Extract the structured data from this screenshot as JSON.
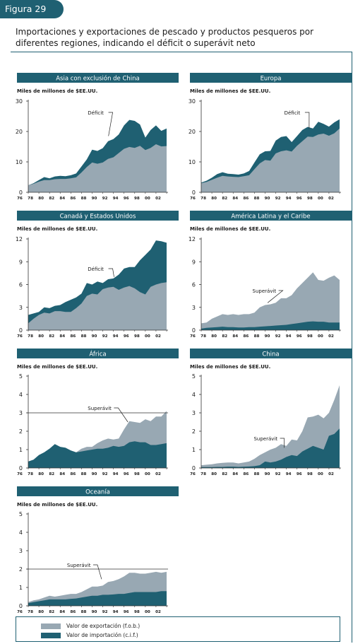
{
  "figure_label": "Figura 29",
  "figure_title": "Importaciones y exportaciones de pescado y productos pesqueros por diferentes regiones, indicando el déficit o superávit neto",
  "legend": {
    "export_label": "Valor de exportación (f.o.b.)",
    "import_label": "Valor de importación (c.i.f.)"
  },
  "colors": {
    "export": "#98a8b3",
    "import": "#1f6072",
    "header": "#1f6072",
    "axis": "#333333"
  },
  "chart_data": [
    {
      "type": "area",
      "title": "Asia con exclusión de China",
      "ylabel": "Miles de millones de $EE.UU.",
      "annotation": "Déficit",
      "categories": [
        "76",
        "78",
        "80",
        "82",
        "84",
        "86",
        "88",
        "90",
        "92",
        "94",
        "96",
        "98",
        "00",
        "02"
      ],
      "x": [
        76,
        77,
        78,
        79,
        80,
        81,
        82,
        83,
        84,
        85,
        86,
        87,
        88,
        89,
        90,
        91,
        92,
        93,
        94,
        95,
        96,
        97,
        98,
        99,
        100,
        101,
        102
      ],
      "ylim": [
        0,
        30
      ],
      "yticks": [
        0,
        10,
        20,
        30
      ],
      "series": [
        {
          "name": "Valor de importación (c.i.f.)",
          "values": [
            2.3,
            3.0,
            4.0,
            5.0,
            4.6,
            5.2,
            5.4,
            5.3,
            5.6,
            6.2,
            8.5,
            10.8,
            14.0,
            13.6,
            14.5,
            16.8,
            17.5,
            19.0,
            22.0,
            23.8,
            23.5,
            22.3,
            18.0,
            20.5,
            22.0,
            20.2,
            21.0
          ]
        },
        {
          "name": "Valor de exportación (f.o.b.)",
          "values": [
            2.3,
            2.8,
            3.5,
            4.0,
            4.0,
            4.3,
            4.4,
            4.4,
            4.6,
            4.9,
            6.5,
            8.3,
            9.8,
            9.4,
            9.8,
            11.0,
            11.5,
            12.9,
            14.3,
            14.9,
            14.6,
            15.3,
            13.9,
            14.6,
            15.8,
            15.1,
            15.2
          ]
        }
      ]
    },
    {
      "type": "area",
      "title": "Europa",
      "ylabel": "Miles de millones de $EE.UU.",
      "annotation": "Déficit",
      "categories": [
        "76",
        "78",
        "80",
        "82",
        "84",
        "86",
        "88",
        "90",
        "92",
        "94",
        "96",
        "98",
        "00",
        "02"
      ],
      "x": [
        76,
        77,
        78,
        79,
        80,
        81,
        82,
        83,
        84,
        85,
        86,
        87,
        88,
        89,
        90,
        91,
        92,
        93,
        94,
        95,
        96,
        97,
        98,
        99,
        100,
        101,
        102
      ],
      "ylim": [
        0,
        30
      ],
      "yticks": [
        0,
        10,
        20,
        30
      ],
      "series": [
        {
          "name": "Valor de importación (c.i.f.)",
          "values": [
            3.2,
            3.8,
            4.8,
            6.0,
            6.6,
            6.1,
            6.0,
            5.8,
            6.2,
            7.0,
            9.8,
            12.5,
            13.5,
            13.6,
            17.0,
            18.2,
            18.5,
            16.5,
            18.5,
            20.5,
            21.5,
            21.0,
            23.2,
            22.5,
            21.6,
            23.0,
            24.0
          ]
        },
        {
          "name": "Valor de exportación (f.o.b.)",
          "values": [
            3.0,
            3.4,
            4.1,
            4.8,
            5.4,
            5.2,
            5.1,
            5.0,
            5.3,
            5.6,
            7.6,
            9.5,
            10.6,
            10.4,
            12.8,
            13.5,
            13.8,
            13.4,
            15.3,
            16.8,
            18.3,
            18.2,
            19.0,
            19.3,
            18.6,
            19.4,
            21.0
          ]
        }
      ]
    },
    {
      "type": "area",
      "title": "Canadá y Estados Unidos",
      "ylabel": "Miles de millones de $EE.UU.",
      "annotation": "Déficit",
      "categories": [
        "76",
        "78",
        "80",
        "82",
        "84",
        "86",
        "88",
        "90",
        "92",
        "94",
        "96",
        "98",
        "00",
        "02"
      ],
      "x": [
        76,
        77,
        78,
        79,
        80,
        81,
        82,
        83,
        84,
        85,
        86,
        87,
        88,
        89,
        90,
        91,
        92,
        93,
        94,
        95,
        96,
        97,
        98,
        99,
        100,
        101,
        102
      ],
      "ylim": [
        0,
        12
      ],
      "yticks": [
        0,
        3,
        6,
        9,
        12
      ],
      "series": [
        {
          "name": "Valor de importación (c.i.f.)",
          "values": [
            2.0,
            2.2,
            2.4,
            3.0,
            2.9,
            3.2,
            3.3,
            3.7,
            4.0,
            4.3,
            4.8,
            6.2,
            6.0,
            6.4,
            6.2,
            6.7,
            6.8,
            7.3,
            8.1,
            8.3,
            8.3,
            9.2,
            9.9,
            10.6,
            11.8,
            11.7,
            11.5
          ]
        },
        {
          "name": "Valor de exportación (f.o.b.)",
          "values": [
            0.9,
            1.5,
            2.0,
            2.3,
            2.2,
            2.5,
            2.5,
            2.4,
            2.4,
            2.9,
            3.5,
            4.5,
            4.8,
            4.7,
            5.4,
            5.6,
            5.7,
            5.3,
            5.6,
            5.8,
            5.5,
            5.0,
            4.7,
            5.7,
            6.0,
            6.2,
            6.3
          ]
        }
      ]
    },
    {
      "type": "area",
      "title": "América Latina y el Caribe",
      "ylabel": "Miles de millones de $EE.UU.",
      "annotation": "Superávit",
      "categories": [
        "76",
        "78",
        "80",
        "82",
        "84",
        "86",
        "88",
        "90",
        "92",
        "94",
        "96",
        "98",
        "00",
        "02"
      ],
      "x": [
        76,
        77,
        78,
        79,
        80,
        81,
        82,
        83,
        84,
        85,
        86,
        87,
        88,
        89,
        90,
        91,
        92,
        93,
        94,
        95,
        96,
        97,
        98,
        99,
        100,
        101,
        102
      ],
      "ylim": [
        0,
        12
      ],
      "yticks": [
        0,
        3,
        6,
        9,
        12
      ],
      "series": [
        {
          "name": "Valor de exportación (f.o.b.)",
          "values": [
            0.9,
            1.0,
            1.5,
            1.8,
            2.1,
            2.0,
            2.1,
            2.0,
            2.1,
            2.1,
            2.3,
            3.0,
            3.3,
            3.4,
            3.6,
            4.2,
            4.2,
            4.6,
            5.5,
            6.2,
            6.9,
            7.6,
            6.6,
            6.5,
            6.9,
            7.2,
            6.6
          ]
        },
        {
          "name": "Valor de importación (c.i.f.)",
          "values": [
            0.2,
            0.3,
            0.35,
            0.4,
            0.45,
            0.4,
            0.4,
            0.35,
            0.35,
            0.4,
            0.4,
            0.45,
            0.5,
            0.55,
            0.6,
            0.65,
            0.7,
            0.8,
            0.9,
            1.0,
            1.1,
            1.15,
            1.1,
            1.1,
            1.0,
            1.0,
            1.0
          ]
        }
      ]
    },
    {
      "type": "area",
      "title": "África",
      "ylabel": "Miles de millones de $EE.UU.",
      "annotation": "Superávit",
      "categories": [
        "76",
        "78",
        "80",
        "82",
        "84",
        "86",
        "88",
        "90",
        "92",
        "94",
        "96",
        "98",
        "00",
        "02"
      ],
      "x": [
        76,
        77,
        78,
        79,
        80,
        81,
        82,
        83,
        84,
        85,
        86,
        87,
        88,
        89,
        90,
        91,
        92,
        93,
        94,
        95,
        96,
        97,
        98,
        99,
        100,
        101,
        102
      ],
      "ylim": [
        0,
        5
      ],
      "yticks": [
        0,
        1,
        2,
        3,
        4,
        5
      ],
      "series": [
        {
          "name": "Valor de exportación (f.o.b.)",
          "values": [
            0.35,
            0.45,
            0.7,
            0.85,
            1.05,
            1.3,
            1.15,
            1.1,
            0.95,
            0.85,
            1.05,
            1.15,
            1.15,
            1.35,
            1.5,
            1.6,
            1.55,
            1.6,
            2.1,
            2.55,
            2.5,
            2.45,
            2.65,
            2.55,
            2.8,
            2.8,
            3.1
          ]
        },
        {
          "name": "Valor de importación (c.i.f.)",
          "values": [
            0.35,
            0.45,
            0.7,
            0.85,
            1.05,
            1.3,
            1.15,
            1.1,
            0.95,
            0.85,
            0.9,
            0.95,
            1.0,
            1.05,
            1.05,
            1.1,
            1.2,
            1.15,
            1.2,
            1.4,
            1.45,
            1.4,
            1.4,
            1.25,
            1.25,
            1.3,
            1.35
          ]
        }
      ]
    },
    {
      "type": "area",
      "title": "China",
      "ylabel": "Miles de millones de $EE.UU.",
      "annotation": "Superávit",
      "categories": [
        "76",
        "78",
        "80",
        "82",
        "84",
        "86",
        "88",
        "90",
        "92",
        "94",
        "96",
        "98",
        "00",
        "02"
      ],
      "x": [
        76,
        77,
        78,
        79,
        80,
        81,
        82,
        83,
        84,
        85,
        86,
        87,
        88,
        89,
        90,
        91,
        92,
        93,
        94,
        95,
        96,
        97,
        98,
        99,
        100,
        101,
        102
      ],
      "ylim": [
        0,
        5
      ],
      "yticks": [
        0,
        1,
        2,
        3,
        4,
        5
      ],
      "series": [
        {
          "name": "Valor de exportación (f.o.b.)",
          "values": [
            0.15,
            0.18,
            0.2,
            0.25,
            0.28,
            0.3,
            0.3,
            0.25,
            0.3,
            0.35,
            0.5,
            0.7,
            0.85,
            1.0,
            1.1,
            1.3,
            1.2,
            1.55,
            1.5,
            2.0,
            2.75,
            2.8,
            2.9,
            2.7,
            3.0,
            3.7,
            4.5
          ]
        },
        {
          "name": "Valor de importación (c.i.f.)",
          "values": [
            0.05,
            0.05,
            0.05,
            0.06,
            0.06,
            0.07,
            0.07,
            0.06,
            0.07,
            0.08,
            0.1,
            0.15,
            0.35,
            0.3,
            0.35,
            0.45,
            0.6,
            0.7,
            0.65,
            0.9,
            1.05,
            1.2,
            1.1,
            1.0,
            1.75,
            1.85,
            2.15
          ]
        }
      ]
    },
    {
      "type": "area",
      "title": "Oceanía",
      "ylabel": "Miles de millones de $EE.UU.",
      "annotation": "Superávit",
      "categories": [
        "76",
        "78",
        "80",
        "82",
        "84",
        "86",
        "88",
        "90",
        "92",
        "94",
        "96",
        "98",
        "00",
        "02"
      ],
      "x": [
        76,
        77,
        78,
        79,
        80,
        81,
        82,
        83,
        84,
        85,
        86,
        87,
        88,
        89,
        90,
        91,
        92,
        93,
        94,
        95,
        96,
        97,
        98,
        99,
        100,
        101,
        102
      ],
      "ylim": [
        0,
        5
      ],
      "yticks": [
        0,
        1,
        2,
        3,
        4,
        5
      ],
      "series": [
        {
          "name": "Valor de exportación (f.o.b.)",
          "values": [
            0.2,
            0.3,
            0.35,
            0.45,
            0.55,
            0.5,
            0.55,
            0.6,
            0.65,
            0.65,
            0.75,
            0.9,
            1.05,
            1.05,
            1.1,
            1.3,
            1.35,
            1.45,
            1.6,
            1.8,
            1.8,
            1.75,
            1.75,
            1.8,
            1.85,
            1.8,
            1.85
          ]
        },
        {
          "name": "Valor de importación (c.i.f.)",
          "values": [
            0.15,
            0.2,
            0.25,
            0.3,
            0.35,
            0.35,
            0.35,
            0.35,
            0.38,
            0.4,
            0.45,
            0.5,
            0.55,
            0.55,
            0.6,
            0.6,
            0.62,
            0.65,
            0.65,
            0.7,
            0.75,
            0.75,
            0.75,
            0.75,
            0.75,
            0.8,
            0.8
          ]
        }
      ]
    }
  ]
}
